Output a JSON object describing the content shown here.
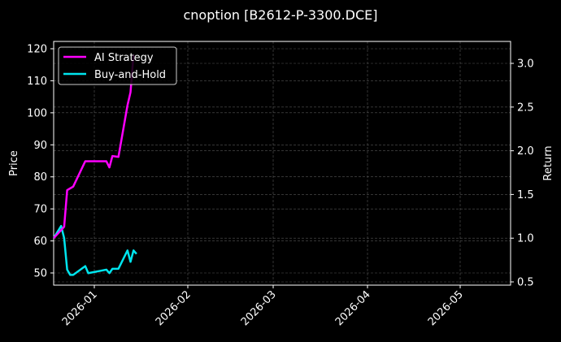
{
  "chart_data": {
    "type": "line",
    "title": "cnoption [B2612-P-3300.DCE]",
    "xlabel": "",
    "ylabel": "Price",
    "ylabel_right": "Return",
    "ylim": [
      46,
      122
    ],
    "ylim_right": [
      0.45,
      3.25
    ],
    "yticks": [
      50,
      60,
      70,
      80,
      90,
      100,
      110,
      120
    ],
    "yticks_right": [
      "0.5",
      "1.0",
      "1.5",
      "2.0",
      "2.5",
      "3.0"
    ],
    "xticks": [
      "2026-01",
      "2026-02",
      "2026-03",
      "2026-04",
      "2026-05"
    ],
    "grid": true,
    "legend_position": "upper left",
    "background": "#000000",
    "series": [
      {
        "name": "AI Strategy",
        "color": "#ff00ff",
        "axis": "right",
        "x": [
          "2025-12-19",
          "2025-12-22",
          "2025-12-23",
          "2025-12-24",
          "2025-12-25",
          "2025-12-29",
          "2026-01-05",
          "2026-01-06",
          "2026-01-07",
          "2026-01-09",
          "2026-01-12",
          "2026-01-13",
          "2026-01-14"
        ],
        "values": [
          1.0,
          1.13,
          1.55,
          1.57,
          1.59,
          1.88,
          1.88,
          1.81,
          1.94,
          1.93,
          2.52,
          2.67,
          3.1
        ]
      },
      {
        "name": "Buy-and-Hold",
        "color": "#00e5ee",
        "axis": "right",
        "x": [
          "2025-12-19",
          "2025-12-21",
          "2025-12-22",
          "2025-12-23",
          "2025-12-24",
          "2025-12-25",
          "2025-12-29",
          "2025-12-30",
          "2026-01-05",
          "2026-01-06",
          "2026-01-07",
          "2026-01-09",
          "2026-01-12",
          "2026-01-13",
          "2026-01-14",
          "2026-01-15"
        ],
        "values": [
          1.0,
          1.14,
          1.0,
          0.64,
          0.58,
          0.58,
          0.68,
          0.6,
          0.64,
          0.6,
          0.65,
          0.65,
          0.86,
          0.73,
          0.86,
          0.82
        ]
      }
    ]
  }
}
